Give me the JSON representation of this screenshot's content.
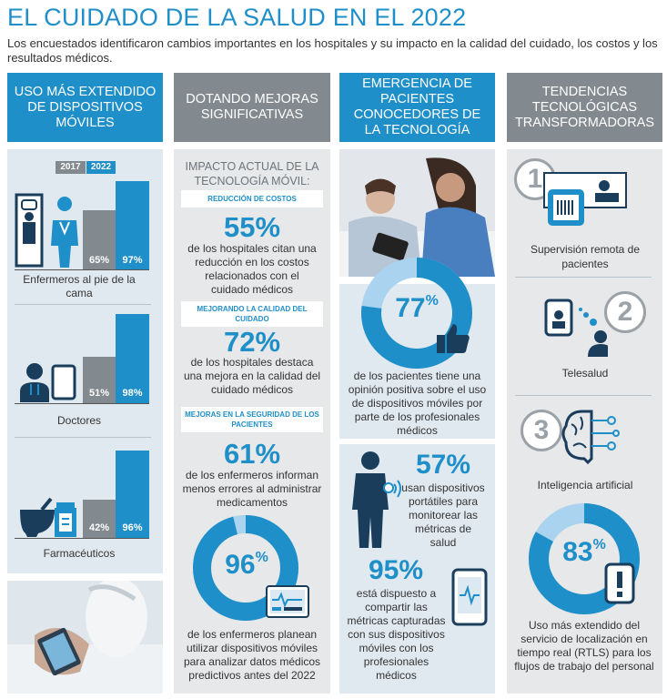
{
  "title": "EL CUIDADO DE LA SALUD EN EL 2022",
  "subtitle": "Los encuestados identificaron cambios importantes en los hospitales y su impacto en la calidad del cuidado, los costos y los resultados médicos.",
  "col1": {
    "header": "USO MÁS EXTENDIDO DE DISPOSITIVOS MÓVILES",
    "legend_2017": "2017",
    "legend_2022": "2022",
    "groups": [
      {
        "label": "Enfermeros al pie de la cama",
        "v2017": "65%",
        "v2022": "97%",
        "f2017": 0.65,
        "f2022": 0.97
      },
      {
        "label": "Doctores",
        "v2017": "51%",
        "v2022": "98%",
        "f2017": 0.51,
        "f2022": 0.98
      },
      {
        "label": "Farmacéuticos",
        "v2017": "42%",
        "v2022": "96%",
        "f2017": 0.42,
        "f2022": 0.96
      }
    ]
  },
  "col2": {
    "header": "DOTANDO MEJORAS SIGNIFICATIVAS",
    "intro": "IMPACTO ACTUAL DE LA TECNOLOGÍA MÓVIL:",
    "tag1": "REDUCCIÓN DE COSTOS",
    "stat1": "55%",
    "text1": "de los hospitales citan una reducción en los costos relacionados con el cuidado médicos",
    "tag2": "MEJORANDO LA CALIDAD DEL CUIDADO",
    "stat2": "72%",
    "text2": "de los hospitales destaca una mejora en la calidad del cuidado médicos",
    "tag3": "MEJORAS EN LA SEGURIDAD DE LOS PACIENTES",
    "stat3": "61%",
    "text3": "de los enfermeros informan menos errores al administrar medicamentos",
    "donut_num": "96",
    "donut_pct": "%",
    "donut_fraction": 0.96,
    "text4": "de los enfermeros planean utilizar dispositivos móviles para analizar datos médicos predictivos antes del 2022"
  },
  "col3": {
    "header": "EMERGENCIA DE PACIENTES CONOCEDORES DE LA TECNOLOGÍA",
    "donut_num": "77",
    "donut_pct": "%",
    "donut_fraction": 0.77,
    "text1": "de los pacientes tiene una opinión positiva sobre el uso de dispositivos móviles por parte de los profesionales médicos",
    "stat2": "57%",
    "text2": "usan dispositivos portátiles para monitorear las métricas de salud",
    "stat3": "95%",
    "text3": "está dispuesto a compartir las métricas capturadas con sus dispositivos móviles con los profesionales médicos"
  },
  "col4": {
    "header": "TENDENCIAS TECNOLÓGICAS TRANSFORMADORAS",
    "items": [
      {
        "num": "1",
        "label": "Supervisión remota de pacientes"
      },
      {
        "num": "2",
        "label": "Telesalud"
      },
      {
        "num": "3",
        "label": "Inteligencia artificial"
      }
    ],
    "donut_num": "83",
    "donut_pct": "%",
    "donut_fraction": 0.83,
    "text": "Uso más extendido del servicio de localización en tiempo real (RTLS) para los flujos de trabajo del personal"
  },
  "colors": {
    "blue": "#1f8fc9",
    "lightblue": "#a9d3ee",
    "gray": "#828a90"
  }
}
